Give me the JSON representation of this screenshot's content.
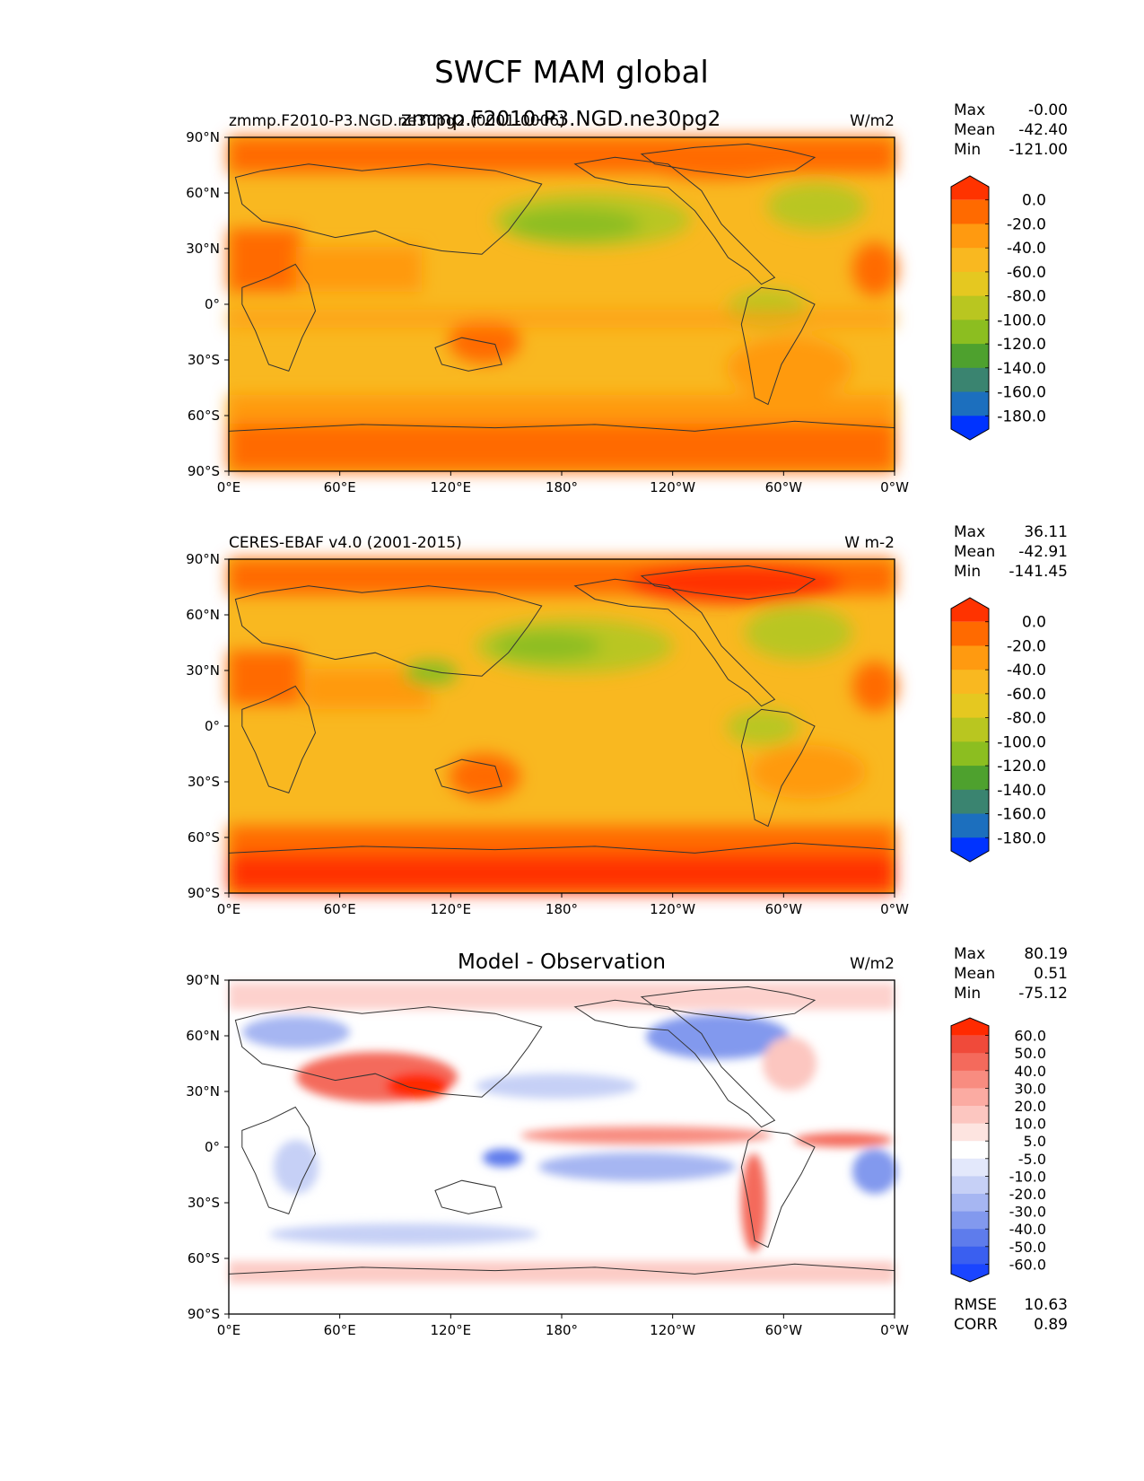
{
  "suptitle": "SWCF MAM global",
  "axis": {
    "lat_ticks": [
      "90°N",
      "60°N",
      "30°N",
      "0°",
      "30°S",
      "60°S",
      "90°S"
    ],
    "lon_ticks": [
      "0°E",
      "60°E",
      "120°E",
      "180°",
      "120°W",
      "60°W",
      "0°W"
    ]
  },
  "panels": [
    {
      "left_title": "zmmp.F2010-P3.NGD.ne30pg2 (0001-0006)",
      "center_title": "zmmp.F2010-P3.NGD.ne30pg2",
      "units": "W/m2",
      "stats": [
        [
          "Max",
          "-0.00"
        ],
        [
          "Mean",
          "-42.40"
        ],
        [
          "Min",
          "-121.00"
        ]
      ],
      "colorbar": {
        "labels": [
          "0.0",
          "-20.0",
          "-40.0",
          "-60.0",
          "-80.0",
          "-100.0",
          "-120.0",
          "-140.0",
          "-160.0",
          "-180.0"
        ],
        "colors": [
          "#ff3300",
          "#ff6a00",
          "#ff9a10",
          "#f9b820",
          "#e5c820",
          "#b9c620",
          "#8cbe20",
          "#4ea12e",
          "#3a8470",
          "#1c6fbe",
          "#0033ff"
        ]
      }
    },
    {
      "left_title": "CERES-EBAF v4.0 (2001-2015)",
      "center_title": "",
      "units": "W m-2",
      "stats": [
        [
          "Max",
          "36.11"
        ],
        [
          "Mean",
          "-42.91"
        ],
        [
          "Min",
          "-141.45"
        ]
      ],
      "colorbar": {
        "labels": [
          "0.0",
          "-20.0",
          "-40.0",
          "-60.0",
          "-80.0",
          "-100.0",
          "-120.0",
          "-140.0",
          "-160.0",
          "-180.0"
        ],
        "colors": [
          "#ff3300",
          "#ff6a00",
          "#ff9a10",
          "#f9b820",
          "#e5c820",
          "#b9c620",
          "#8cbe20",
          "#4ea12e",
          "#3a8470",
          "#1c6fbe",
          "#0033ff"
        ]
      }
    },
    {
      "left_title": "",
      "center_title": "Model - Observation",
      "units": "W/m2",
      "stats": [
        [
          "Max",
          "80.19"
        ],
        [
          "Mean",
          "0.51"
        ],
        [
          "Min",
          "-75.12"
        ]
      ],
      "footer_stats": [
        [
          "RMSE",
          "10.63"
        ],
        [
          "CORR",
          "0.89"
        ]
      ],
      "colorbar": {
        "labels": [
          "60.0",
          "50.0",
          "40.0",
          "30.0",
          "20.0",
          "10.0",
          "5.0",
          "-5.0",
          "-10.0",
          "-20.0",
          "-30.0",
          "-40.0",
          "-50.0",
          "-60.0"
        ],
        "colors": [
          "#ff2a00",
          "#f04a3a",
          "#f46a5c",
          "#f88c80",
          "#fbaba2",
          "#fcc6c0",
          "#fde4e0",
          "#ffffff",
          "#e3e8fb",
          "#c6d0f6",
          "#a6b6f2",
          "#8299ee",
          "#5e7cec",
          "#3a5ff0",
          "#1a45ff"
        ]
      }
    }
  ]
}
